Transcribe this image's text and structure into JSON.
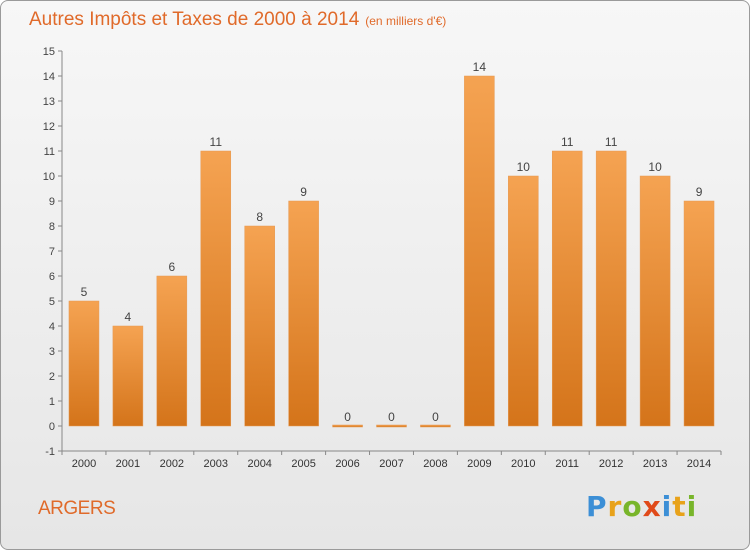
{
  "chart_data": {
    "type": "bar",
    "title": "Autres Impôts et Taxes de 2000 à 2014",
    "subtitle": "(en milliers d'€)",
    "categories": [
      "2000",
      "2001",
      "2002",
      "2003",
      "2004",
      "2005",
      "2006",
      "2007",
      "2008",
      "2009",
      "2010",
      "2011",
      "2012",
      "2013",
      "2014"
    ],
    "values": [
      5,
      4,
      6,
      11,
      8,
      9,
      0,
      0,
      0,
      14,
      10,
      11,
      11,
      10,
      9
    ],
    "ylim": [
      -1,
      15
    ],
    "yticks": [
      -1,
      0,
      1,
      2,
      3,
      4,
      5,
      6,
      7,
      8,
      9,
      10,
      11,
      12,
      13,
      14,
      15
    ],
    "grid": false,
    "legend": "none",
    "bar_color": "#f0913a"
  },
  "footer": {
    "place": "ARGERS",
    "logo_letters": [
      {
        "char": "P",
        "color": "#3c8fd6"
      },
      {
        "char": "r",
        "color": "#e8a21a"
      },
      {
        "char": "o",
        "color": "#78b52a"
      },
      {
        "char": "x",
        "color": "#e04a1a"
      },
      {
        "char": "i",
        "color": "#3c8fd6"
      },
      {
        "char": "t",
        "color": "#e8a21a"
      },
      {
        "char": "i",
        "color": "#78b52a"
      }
    ]
  }
}
